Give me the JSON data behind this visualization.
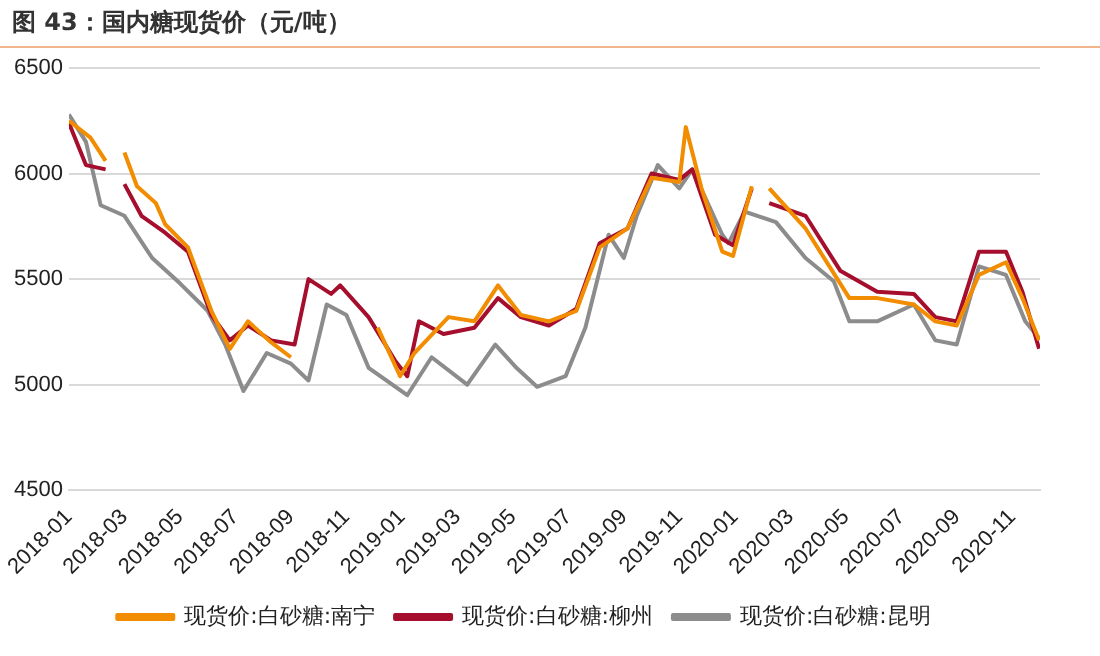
{
  "chart_data": {
    "type": "line",
    "title": "图 43：国内糖现货价（元/吨）",
    "xlim": [
      "2018-01",
      "2020-12"
    ],
    "xticks": [
      "2018-01",
      "2018-03",
      "2018-05",
      "2018-07",
      "2018-09",
      "2018-11",
      "2019-01",
      "2019-03",
      "2019-05",
      "2019-07",
      "2019-09",
      "2019-11",
      "2020-01",
      "2020-03",
      "2020-05",
      "2020-07",
      "2020-09",
      "2020-11"
    ],
    "ylim": [
      4500,
      6500
    ],
    "yticks": [
      4500,
      5000,
      5500,
      6000,
      6500
    ],
    "grid": "y",
    "legend": "bottom",
    "marker": "none",
    "line_style": "solid",
    "series": [
      {
        "name": "现货价:白砂糖:南宁",
        "color": "#f28c00",
        "x": [
          "2018-01-01",
          "2018-01-25",
          "2018-02-10",
          "2018-02-20",
          "2018-03-01",
          "2018-03-15",
          "2018-04-05",
          "2018-04-15",
          "2018-05-10",
          "2018-06-05",
          "2018-06-25",
          "2018-07-15",
          "2018-08-10",
          "2018-09-01",
          "2018-11-20",
          "2018-12-05",
          "2018-12-30",
          "2019-01-15",
          "2019-02-20",
          "2019-03-20",
          "2019-04-15",
          "2019-05-10",
          "2019-06-10",
          "2019-07-10",
          "2019-08-05",
          "2019-09-05",
          "2019-10-01",
          "2019-11-01",
          "2019-11-08",
          "2019-11-25",
          "2019-12-18",
          "2019-12-30",
          "2020-01-20",
          "2020-01-28",
          "2020-02-08",
          "2020-03-18",
          "2020-05-05",
          "2020-06-05",
          "2020-07-15",
          "2020-08-08",
          "2020-09-01",
          "2020-09-25",
          "2020-10-25",
          "2020-11-12",
          "2020-11-30"
        ],
        "values": [
          6250,
          6170,
          6060,
          null,
          6100,
          5940,
          5860,
          5760,
          5650,
          5350,
          5170,
          5300,
          5200,
          5130,
          null,
          5270,
          5040,
          5150,
          5320,
          5300,
          5470,
          5330,
          5300,
          5350,
          5650,
          5740,
          5980,
          5960,
          6220,
          5930,
          5630,
          5610,
          5940,
          null,
          5930,
          5740,
          5410,
          5410,
          5380,
          5300,
          5280,
          5520,
          5580,
          5410,
          5210
        ]
      },
      {
        "name": "现货价:白砂糖:柳州",
        "color": "#a50f2d",
        "x": [
          "2018-01-01",
          "2018-01-20",
          "2018-02-10",
          "2018-02-20",
          "2018-03-01",
          "2018-03-20",
          "2018-04-15",
          "2018-05-10",
          "2018-06-05",
          "2018-06-25",
          "2018-07-15",
          "2018-08-10",
          "2018-09-05",
          "2018-09-20",
          "2018-10-15",
          "2018-10-25",
          "2018-11-25",
          "2018-12-25",
          "2019-01-07",
          "2019-01-20",
          "2019-02-15",
          "2019-03-20",
          "2019-04-15",
          "2019-05-10",
          "2019-06-10",
          "2019-07-10",
          "2019-08-05",
          "2019-09-05",
          "2019-10-01",
          "2019-11-01",
          "2019-11-15",
          "2019-12-10",
          "2019-12-30",
          "2020-01-20",
          "2020-01-28",
          "2020-02-08",
          "2020-03-18",
          "2020-04-25",
          "2020-06-05",
          "2020-07-15",
          "2020-08-08",
          "2020-09-01",
          "2020-09-25",
          "2020-10-25",
          "2020-11-12",
          "2020-11-30"
        ],
        "values": [
          6240,
          6040,
          6020,
          null,
          5950,
          5800,
          5720,
          5630,
          5330,
          5210,
          5280,
          5210,
          5190,
          5500,
          5430,
          5470,
          5320,
          5110,
          5040,
          5300,
          5240,
          5270,
          5410,
          5320,
          5280,
          5360,
          5670,
          5740,
          6000,
          5970,
          6020,
          5710,
          5660,
          5930,
          null,
          5860,
          5800,
          5540,
          5440,
          5430,
          5320,
          5300,
          5630,
          5630,
          5440,
          5170
        ]
      },
      {
        "name": "现货价:白砂糖:昆明",
        "color": "#8c8c8c",
        "x": [
          "2018-01-01",
          "2018-01-20",
          "2018-02-05",
          "2018-03-01",
          "2018-04-01",
          "2018-05-01",
          "2018-06-01",
          "2018-06-20",
          "2018-07-10",
          "2018-08-05",
          "2018-09-01",
          "2018-09-20",
          "2018-10-10",
          "2018-11-01",
          "2018-11-25",
          "2019-01-07",
          "2019-02-03",
          "2019-03-12",
          "2019-04-12",
          "2019-05-05",
          "2019-05-28",
          "2019-06-28",
          "2019-07-20",
          "2019-08-15",
          "2019-09-01",
          "2019-09-15",
          "2019-10-08",
          "2019-11-01",
          "2019-11-15",
          "2019-12-18",
          "2019-12-25",
          "2020-01-12",
          "2020-02-15",
          "2020-03-18",
          "2020-04-18",
          "2020-05-05",
          "2020-06-05",
          "2020-07-15",
          "2020-08-08",
          "2020-09-01",
          "2020-09-25",
          "2020-10-25",
          "2020-11-15",
          "2020-11-30"
        ],
        "values": [
          6280,
          6150,
          5850,
          5800,
          5600,
          5480,
          5350,
          5190,
          4970,
          5150,
          5100,
          5020,
          5380,
          5330,
          5080,
          4950,
          5130,
          5000,
          5190,
          5080,
          4990,
          5040,
          5270,
          5710,
          5600,
          5800,
          6040,
          5930,
          6020,
          5710,
          5670,
          5820,
          5770,
          5600,
          5490,
          5300,
          5300,
          5380,
          5210,
          5190,
          5560,
          5520,
          5300,
          5220
        ]
      }
    ]
  }
}
